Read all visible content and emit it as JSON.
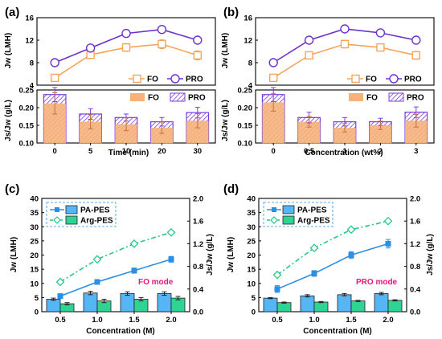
{
  "colors": {
    "fo_line": "#f5a55a",
    "pro_line": "#6b33cc",
    "bar_orange": "#f7b27a",
    "bar_hatch": "#7c3ee0",
    "pa_pes": "#2b8fe3",
    "arg_pes": "#26c987",
    "pa_pes_bar": "#56b6f5",
    "arg_pes_bar": "#2fd494",
    "mode_label": "#e8157a"
  },
  "chart_data": [
    {
      "id": "a",
      "panel_label": "(a)",
      "type": "line+bar",
      "x_categories": [
        "0",
        "5",
        "10",
        "20",
        "30"
      ],
      "xlabel": "Time (min)",
      "top": {
        "ylabel": "Jw (LMH)",
        "ylim": [
          4,
          16
        ],
        "yticks": [
          "4",
          "8",
          "12",
          "16"
        ],
        "series": [
          {
            "name": "FO",
            "values": [
              5.3,
              9.4,
              10.7,
              11.3,
              9.3
            ],
            "errors": [
              0.6,
              0.5,
              0.7,
              0.8,
              0.8
            ]
          },
          {
            "name": "PRO",
            "values": [
              8.0,
              10.6,
              13.2,
              13.9,
              12.0
            ],
            "errors": [
              0.3,
              0.4,
              0.3,
              0.3,
              0.3
            ]
          }
        ]
      },
      "bottom": {
        "ylabel": "Js/Jw (g/L)",
        "ylim": [
          0.1,
          0.25
        ],
        "yticks": [
          "0.10",
          "0.15",
          "0.20",
          "0.25"
        ],
        "series": [
          {
            "name": "FO",
            "values": [
              0.212,
              0.16,
              0.153,
              0.143,
              0.163
            ],
            "errors": [
              0.03,
              0.02,
              0.018,
              0.016,
              0.02
            ]
          },
          {
            "name": "PRO",
            "values": [
              0.237,
              0.182,
              0.172,
              0.16,
              0.186
            ],
            "errors": [
              0.02,
              0.015,
              0.01,
              0.012,
              0.015
            ]
          }
        ]
      }
    },
    {
      "id": "b",
      "panel_label": "(b)",
      "type": "line+bar",
      "x_categories": [
        "0",
        "0.5",
        "1",
        "2",
        "3"
      ],
      "xlabel": "Concentration (wt%)",
      "top": {
        "ylabel": "Jw (LMH)",
        "ylim": [
          4,
          16
        ],
        "yticks": [
          "4",
          "8",
          "12",
          "16"
        ],
        "series": [
          {
            "name": "FO",
            "values": [
              5.3,
              9.3,
              11.3,
              10.7,
              9.3
            ],
            "errors": [
              0.5,
              0.6,
              0.7,
              0.6,
              0.7
            ]
          },
          {
            "name": "PRO",
            "values": [
              8.0,
              12.0,
              14.0,
              13.3,
              12.0
            ],
            "errors": [
              0.3,
              0.3,
              0.3,
              0.3,
              0.3
            ]
          }
        ]
      },
      "bottom": {
        "ylabel": "Js/Jw (g/L)",
        "ylim": [
          0.1,
          0.25
        ],
        "yticks": [
          "0.10",
          "0.15",
          "0.20",
          "0.25"
        ],
        "series": [
          {
            "name": "FO",
            "values": [
              0.215,
              0.16,
              0.143,
              0.15,
              0.163
            ],
            "errors": [
              0.025,
              0.015,
              0.012,
              0.012,
              0.018
            ]
          },
          {
            "name": "PRO",
            "values": [
              0.237,
              0.172,
              0.16,
              0.16,
              0.187
            ],
            "errors": [
              0.02,
              0.015,
              0.012,
              0.01,
              0.015
            ]
          }
        ]
      }
    },
    {
      "id": "c",
      "panel_label": "(c)",
      "type": "line+bar",
      "x_categories": [
        "0.5",
        "1.0",
        "1.5",
        "2.0"
      ],
      "xlabel": "Concentration (M)",
      "mode_label": "FO mode",
      "left_axis": {
        "ylabel": "Jw (LMH)",
        "ylim": [
          0,
          40
        ],
        "yticks": [
          "0",
          "5",
          "10",
          "15",
          "20",
          "25",
          "30",
          "35",
          "40"
        ]
      },
      "right_axis": {
        "ylabel": "Js/Jw (g/L)",
        "ylim": [
          0,
          2.0
        ],
        "yticks": [
          "0.0",
          "0.4",
          "0.8",
          "1.2",
          "1.6",
          "2.0"
        ]
      },
      "lines": [
        {
          "name": "PA-PES",
          "axis": "left",
          "values": [
            5.5,
            10.5,
            14.5,
            18.5
          ],
          "errors": [
            0.8,
            0.8,
            0.9,
            1.0
          ]
        },
        {
          "name": "Arg-PES",
          "axis": "left",
          "values": [
            10.5,
            18.5,
            24.0,
            28.0
          ],
          "errors": [
            0,
            0,
            0,
            0
          ]
        }
      ],
      "bars": [
        {
          "name": "PA-PES",
          "axis": "right",
          "values": [
            0.22,
            0.33,
            0.32,
            0.32
          ],
          "errors": [
            0.02,
            0.03,
            0.03,
            0.03
          ]
        },
        {
          "name": "Arg-PES",
          "axis": "right",
          "values": [
            0.14,
            0.19,
            0.22,
            0.24
          ],
          "errors": [
            0.02,
            0.03,
            0.03,
            0.03
          ]
        }
      ]
    },
    {
      "id": "d",
      "panel_label": "(d)",
      "type": "line+bar",
      "x_categories": [
        "0.5",
        "1.0",
        "1.5",
        "2.0"
      ],
      "xlabel": "Concentration (M)",
      "mode_label": "PRO mode",
      "left_axis": {
        "ylabel": "Jw (LMH)",
        "ylim": [
          0,
          40
        ],
        "yticks": [
          "0",
          "5",
          "10",
          "15",
          "20",
          "25",
          "30",
          "35",
          "40"
        ]
      },
      "right_axis": {
        "ylabel": "Js/Jw (g/L)",
        "ylim": [
          0,
          2.0
        ],
        "yticks": [
          "0.0",
          "0.4",
          "0.8",
          "1.2",
          "1.6",
          "2.0"
        ]
      },
      "lines": [
        {
          "name": "PA-PES",
          "axis": "left",
          "values": [
            8.0,
            13.5,
            20.0,
            24.0
          ],
          "errors": [
            1.2,
            1.0,
            1.2,
            1.5
          ]
        },
        {
          "name": "Arg-PES",
          "axis": "left",
          "values": [
            13.0,
            22.5,
            29.0,
            32.0
          ],
          "errors": [
            0,
            0,
            0,
            0
          ]
        }
      ],
      "bars": [
        {
          "name": "PA-PES",
          "axis": "right",
          "values": [
            0.24,
            0.28,
            0.3,
            0.32
          ],
          "errors": [
            0.01,
            0.02,
            0.02,
            0.02
          ]
        },
        {
          "name": "Arg-PES",
          "axis": "right",
          "values": [
            0.16,
            0.17,
            0.19,
            0.2
          ],
          "errors": [
            0.01,
            0.01,
            0.01,
            0.01
          ]
        }
      ]
    }
  ]
}
